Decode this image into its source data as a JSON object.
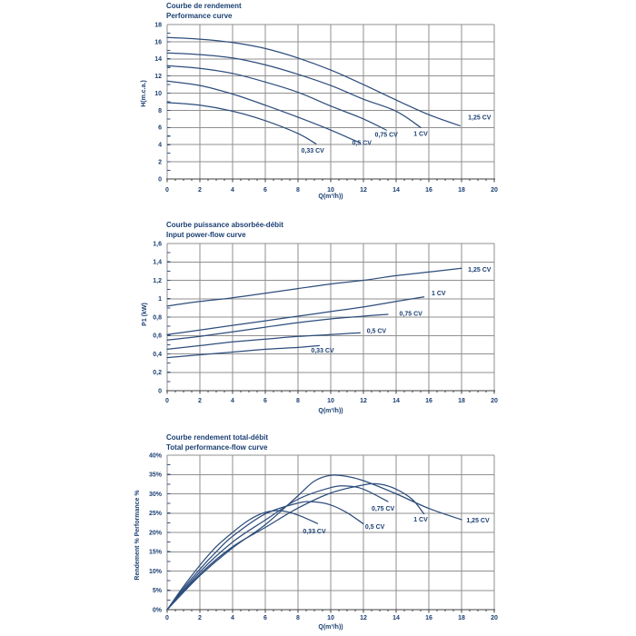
{
  "page": {
    "background": "#ffffff"
  },
  "colors": {
    "curve_stroke": "#2d4d7c",
    "title_text": "#1b3f72",
    "tick_text": "#1b3f72",
    "grid_line": "#8f8f8f",
    "axis_line": "#3f3f3f",
    "inner_tick": "#33517e"
  },
  "chart_data": [
    {
      "id": "performance-curve",
      "type": "line",
      "title_fr": "Courbe de rendement",
      "title_en": "Performance curve",
      "xlabel": "Q(m³/h))",
      "ylabel": "H(m.c.a.)",
      "xlim": [
        0,
        20
      ],
      "ylim": [
        0,
        18
      ],
      "x_ticks": [
        "0",
        "2",
        "4",
        "6",
        "8",
        "10",
        "12",
        "14",
        "16",
        "18",
        "20"
      ],
      "y_ticks": [
        "0",
        "2",
        "4",
        "6",
        "8",
        "10",
        "12",
        "14",
        "16",
        "18"
      ],
      "x_minor_step": 0.5,
      "y_minor_step": 1,
      "grid": true,
      "series": [
        {
          "name": "0,33 CV",
          "points": [
            [
              0,
              8.9
            ],
            [
              2,
              8.6
            ],
            [
              4,
              7.9
            ],
            [
              6,
              6.8
            ],
            [
              8,
              5.3
            ],
            [
              9.1,
              4.1
            ]
          ],
          "label_at": [
            8.9,
            3.3
          ]
        },
        {
          "name": "0,5 CV",
          "points": [
            [
              0,
              11.4
            ],
            [
              2,
              10.9
            ],
            [
              4,
              9.9
            ],
            [
              6,
              8.6
            ],
            [
              8,
              7.2
            ],
            [
              10,
              5.7
            ],
            [
              11.8,
              4.2
            ]
          ],
          "label_at": [
            11.9,
            4.2
          ]
        },
        {
          "name": "0,75 CV",
          "points": [
            [
              0,
              13.2
            ],
            [
              2,
              12.9
            ],
            [
              4,
              12.3
            ],
            [
              6,
              11.3
            ],
            [
              8,
              10.1
            ],
            [
              10,
              8.5
            ],
            [
              12,
              7.0
            ],
            [
              13.4,
              5.7
            ]
          ],
          "label_at": [
            13.4,
            5.2
          ]
        },
        {
          "name": "1 CV",
          "points": [
            [
              0,
              14.7
            ],
            [
              2,
              14.5
            ],
            [
              4,
              14.1
            ],
            [
              6,
              13.3
            ],
            [
              8,
              12.2
            ],
            [
              10,
              10.9
            ],
            [
              12,
              9.3
            ],
            [
              14,
              7.9
            ],
            [
              15.5,
              6.0
            ]
          ],
          "label_at": [
            15.5,
            5.3
          ]
        },
        {
          "name": "1,25 CV",
          "points": [
            [
              0,
              16.5
            ],
            [
              2,
              16.3
            ],
            [
              4,
              15.9
            ],
            [
              6,
              15.2
            ],
            [
              8,
              14.1
            ],
            [
              10,
              12.7
            ],
            [
              12,
              11.0
            ],
            [
              14,
              9.2
            ],
            [
              16,
              7.5
            ],
            [
              17.9,
              6.2
            ]
          ],
          "label_at": [
            19.1,
            7.2
          ]
        }
      ]
    },
    {
      "id": "input-power-flow-curve",
      "type": "line",
      "title_fr": "Courbe puissance absorbée-débit",
      "title_en": "Input power-flow curve",
      "xlabel": "Q(m³/h))",
      "ylabel": "P1 (kW)",
      "xlim": [
        0,
        20
      ],
      "ylim": [
        0,
        1.6
      ],
      "x_ticks": [
        "0",
        "2",
        "4",
        "6",
        "8",
        "10",
        "12",
        "14",
        "16",
        "18",
        "20"
      ],
      "y_ticks": [
        "0",
        "0,2",
        "0,4",
        "0,6",
        "0,8",
        "1",
        "1,2",
        "1,4",
        "1,6"
      ],
      "x_minor_step": 0.5,
      "y_minor_step": 0.1,
      "grid": true,
      "series": [
        {
          "name": "0,33 CV",
          "points": [
            [
              0,
              0.36
            ],
            [
              2,
              0.39
            ],
            [
              4,
              0.42
            ],
            [
              6,
              0.45
            ],
            [
              8,
              0.47
            ],
            [
              9.3,
              0.49
            ]
          ],
          "label_at": [
            9.5,
            0.44
          ]
        },
        {
          "name": "0,5 CV",
          "points": [
            [
              0,
              0.45
            ],
            [
              2,
              0.49
            ],
            [
              4,
              0.53
            ],
            [
              6,
              0.56
            ],
            [
              8,
              0.59
            ],
            [
              10,
              0.61
            ],
            [
              11.8,
              0.63
            ]
          ],
          "label_at": [
            12.8,
            0.65
          ]
        },
        {
          "name": "0,75 CV",
          "points": [
            [
              0,
              0.55
            ],
            [
              2,
              0.59
            ],
            [
              4,
              0.64
            ],
            [
              6,
              0.69
            ],
            [
              8,
              0.74
            ],
            [
              10,
              0.78
            ],
            [
              12,
              0.81
            ],
            [
              13.5,
              0.83
            ]
          ],
          "label_at": [
            14.9,
            0.84
          ]
        },
        {
          "name": "1 CV",
          "points": [
            [
              0,
              0.61
            ],
            [
              2,
              0.66
            ],
            [
              4,
              0.71
            ],
            [
              6,
              0.76
            ],
            [
              8,
              0.81
            ],
            [
              10,
              0.86
            ],
            [
              12,
              0.91
            ],
            [
              14,
              0.97
            ],
            [
              15.7,
              1.02
            ]
          ],
          "label_at": [
            16.6,
            1.06
          ]
        },
        {
          "name": "1,25 CV",
          "points": [
            [
              0,
              0.92
            ],
            [
              2,
              0.97
            ],
            [
              4,
              1.01
            ],
            [
              6,
              1.06
            ],
            [
              8,
              1.11
            ],
            [
              10,
              1.16
            ],
            [
              12,
              1.2
            ],
            [
              14,
              1.25
            ],
            [
              16,
              1.29
            ],
            [
              18,
              1.33
            ]
          ],
          "label_at": [
            19.1,
            1.32
          ]
        }
      ]
    },
    {
      "id": "total-performance-flow-curve",
      "type": "line",
      "title_fr": "Courbe rendement total-débit",
      "title_en": "Total performance-flow curve",
      "xlabel": "Q(m³/h))",
      "ylabel": "Rendement %  Performance %",
      "xlim": [
        0,
        20
      ],
      "ylim": [
        0,
        40
      ],
      "x_ticks": [
        "0",
        "2",
        "4",
        "6",
        "8",
        "10",
        "12",
        "14",
        "16",
        "18",
        "20"
      ],
      "y_ticks": [
        "0%",
        "5%",
        "10%",
        "15%",
        "20%",
        "25%",
        "30%",
        "35%",
        "40%"
      ],
      "x_minor_step": 0.5,
      "y_minor_step": 2.5,
      "grid": true,
      "series": [
        {
          "name": "0,33 CV",
          "points": [
            [
              0,
              0
            ],
            [
              1,
              6
            ],
            [
              2,
              11.5
            ],
            [
              3,
              16.3
            ],
            [
              4,
              20
            ],
            [
              5,
              23.2
            ],
            [
              6,
              25.2
            ],
            [
              7,
              25.6
            ],
            [
              8,
              24.5
            ],
            [
              9.2,
              22.3
            ]
          ],
          "label_at": [
            9.0,
            20.3
          ]
        },
        {
          "name": "0,5 CV",
          "points": [
            [
              0,
              0
            ],
            [
              1,
              5.5
            ],
            [
              2,
              10.5
            ],
            [
              3,
              15
            ],
            [
              4,
              19
            ],
            [
              6,
              24.8
            ],
            [
              8,
              27.6
            ],
            [
              9,
              27.9
            ],
            [
              10,
              27.1
            ],
            [
              11,
              25.1
            ],
            [
              12,
              22.2
            ]
          ],
          "label_at": [
            12.7,
            21.5
          ]
        },
        {
          "name": "0,75 CV",
          "points": [
            [
              0,
              0
            ],
            [
              2,
              9.8
            ],
            [
              4,
              17.5
            ],
            [
              6,
              23.2
            ],
            [
              8,
              28.6
            ],
            [
              10,
              31.6
            ],
            [
              11,
              32.0
            ],
            [
              12,
              31.2
            ],
            [
              13.5,
              28.0
            ]
          ],
          "label_at": [
            13.2,
            26.2
          ]
        },
        {
          "name": "1 CV",
          "points": [
            [
              0,
              0
            ],
            [
              2,
              9.2
            ],
            [
              4,
              16.3
            ],
            [
              6,
              21.3
            ],
            [
              8,
              26.3
            ],
            [
              10,
              30.2
            ],
            [
              12,
              32.3
            ],
            [
              13,
              32.5
            ],
            [
              14,
              31.2
            ],
            [
              15,
              28.5
            ],
            [
              15.7,
              24.8
            ]
          ],
          "label_at": [
            15.5,
            23.4
          ]
        },
        {
          "name": "1,25 CV",
          "points": [
            [
              0,
              0
            ],
            [
              2,
              8.8
            ],
            [
              4,
              16
            ],
            [
              6,
              22
            ],
            [
              8,
              29.5
            ],
            [
              9,
              33.3
            ],
            [
              10,
              34.8
            ],
            [
              11,
              34.5
            ],
            [
              12,
              33.4
            ],
            [
              14,
              30
            ],
            [
              16,
              26.2
            ],
            [
              18,
              23.3
            ]
          ],
          "label_at": [
            19.0,
            23.2
          ]
        }
      ]
    }
  ]
}
